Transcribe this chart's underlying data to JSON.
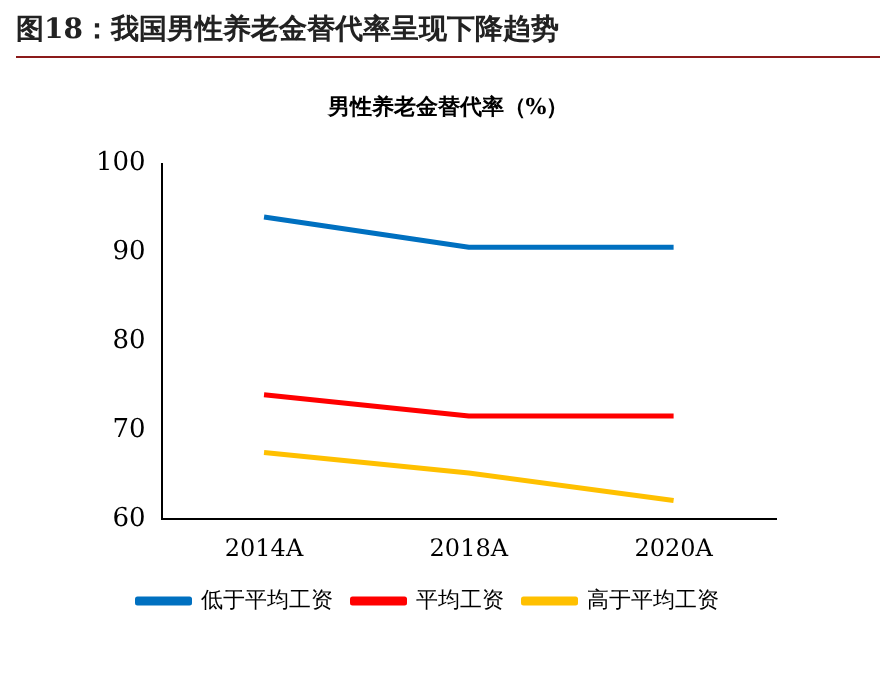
{
  "chart_data": {
    "type": "line",
    "title": "图18：我国男性养老金替代率呈现下降趋势",
    "subtitle": "男性养老金替代率（%）",
    "categories": [
      "2014A",
      "2018A",
      "2020A"
    ],
    "series": [
      {
        "name": "低于平均工资",
        "color": "#0070c0",
        "values": [
          94,
          90.6,
          90.6
        ]
      },
      {
        "name": "平均工资",
        "color": "#ff0000",
        "values": [
          74,
          71.6,
          71.6
        ]
      },
      {
        "name": "高于平均工资",
        "color": "#ffc000",
        "values": [
          67.5,
          65.2,
          62.1
        ]
      }
    ],
    "ylim": [
      60,
      100
    ],
    "yticks": [
      60,
      70,
      80,
      90,
      100
    ],
    "grid": false,
    "legend": "bottom",
    "marker": "none",
    "line_style": "solid"
  }
}
